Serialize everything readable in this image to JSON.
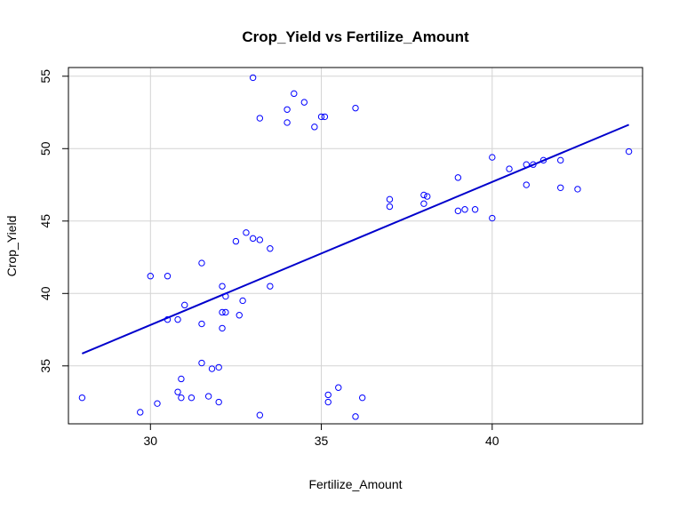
{
  "chart_data": {
    "type": "scatter",
    "title": "Crop_Yield vs Fertilize_Amount",
    "xlabel": "Fertilize_Amount",
    "ylabel": "Crop_Yield",
    "xlim": [
      27.6,
      44.4
    ],
    "ylim": [
      31.0,
      55.6
    ],
    "xticks": [
      30,
      35,
      40
    ],
    "yticks": [
      35,
      40,
      45,
      50,
      55
    ],
    "grid": true,
    "point_color": "#0000ff",
    "line_color": "#0000cc",
    "trend_line": {
      "x": [
        28.0,
        44.0
      ],
      "y": [
        35.85,
        51.65
      ]
    },
    "points": [
      {
        "x": 28.0,
        "y": 32.8
      },
      {
        "x": 29.7,
        "y": 31.8
      },
      {
        "x": 30.0,
        "y": 41.2
      },
      {
        "x": 30.2,
        "y": 32.4
      },
      {
        "x": 30.5,
        "y": 41.2
      },
      {
        "x": 30.5,
        "y": 38.2
      },
      {
        "x": 30.8,
        "y": 38.2
      },
      {
        "x": 30.8,
        "y": 33.2
      },
      {
        "x": 30.9,
        "y": 34.1
      },
      {
        "x": 30.9,
        "y": 32.8
      },
      {
        "x": 31.0,
        "y": 39.2
      },
      {
        "x": 31.2,
        "y": 32.8
      },
      {
        "x": 31.5,
        "y": 42.1
      },
      {
        "x": 31.5,
        "y": 37.9
      },
      {
        "x": 31.5,
        "y": 35.2
      },
      {
        "x": 31.7,
        "y": 32.9
      },
      {
        "x": 31.8,
        "y": 34.8
      },
      {
        "x": 32.0,
        "y": 34.9
      },
      {
        "x": 32.0,
        "y": 32.5
      },
      {
        "x": 32.1,
        "y": 40.5
      },
      {
        "x": 32.1,
        "y": 38.7
      },
      {
        "x": 32.1,
        "y": 37.6
      },
      {
        "x": 32.2,
        "y": 39.8
      },
      {
        "x": 32.2,
        "y": 38.7
      },
      {
        "x": 32.5,
        "y": 43.6
      },
      {
        "x": 32.6,
        "y": 38.5
      },
      {
        "x": 32.7,
        "y": 39.5
      },
      {
        "x": 32.8,
        "y": 44.2
      },
      {
        "x": 33.0,
        "y": 54.9
      },
      {
        "x": 33.0,
        "y": 43.8
      },
      {
        "x": 33.2,
        "y": 52.1
      },
      {
        "x": 33.2,
        "y": 43.7
      },
      {
        "x": 33.2,
        "y": 31.6
      },
      {
        "x": 33.5,
        "y": 43.1
      },
      {
        "x": 33.5,
        "y": 40.5
      },
      {
        "x": 34.0,
        "y": 52.7
      },
      {
        "x": 34.0,
        "y": 51.8
      },
      {
        "x": 34.2,
        "y": 53.8
      },
      {
        "x": 34.5,
        "y": 53.2
      },
      {
        "x": 34.8,
        "y": 51.5
      },
      {
        "x": 35.0,
        "y": 52.2
      },
      {
        "x": 35.1,
        "y": 52.2
      },
      {
        "x": 35.2,
        "y": 33.0
      },
      {
        "x": 35.2,
        "y": 32.5
      },
      {
        "x": 35.5,
        "y": 33.5
      },
      {
        "x": 36.0,
        "y": 52.8
      },
      {
        "x": 36.0,
        "y": 31.5
      },
      {
        "x": 36.2,
        "y": 32.8
      },
      {
        "x": 37.0,
        "y": 46.5
      },
      {
        "x": 37.0,
        "y": 46.0
      },
      {
        "x": 38.0,
        "y": 46.8
      },
      {
        "x": 38.0,
        "y": 46.2
      },
      {
        "x": 38.1,
        "y": 46.7
      },
      {
        "x": 39.0,
        "y": 48.0
      },
      {
        "x": 39.0,
        "y": 45.7
      },
      {
        "x": 39.2,
        "y": 45.8
      },
      {
        "x": 39.5,
        "y": 45.8
      },
      {
        "x": 40.0,
        "y": 49.4
      },
      {
        "x": 40.0,
        "y": 45.2
      },
      {
        "x": 40.5,
        "y": 48.6
      },
      {
        "x": 41.0,
        "y": 48.9
      },
      {
        "x": 41.0,
        "y": 47.5
      },
      {
        "x": 41.2,
        "y": 48.9
      },
      {
        "x": 41.5,
        "y": 49.2
      },
      {
        "x": 42.0,
        "y": 49.2
      },
      {
        "x": 42.0,
        "y": 47.3
      },
      {
        "x": 42.5,
        "y": 47.2
      },
      {
        "x": 44.0,
        "y": 49.8
      }
    ]
  }
}
